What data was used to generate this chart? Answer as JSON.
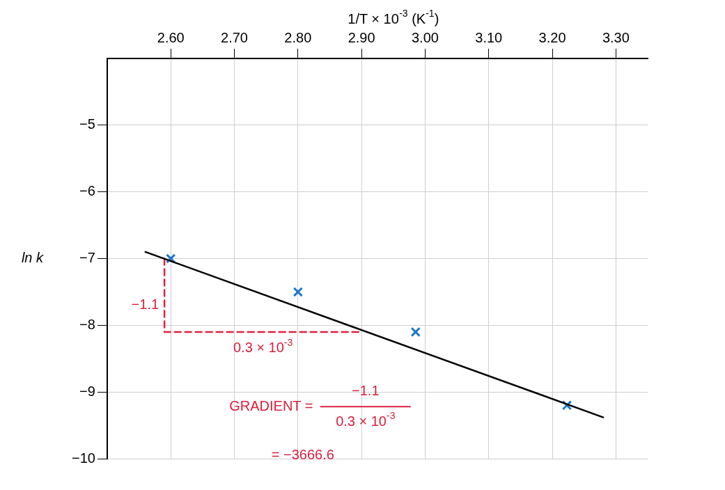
{
  "chart_data": {
    "type": "scatter",
    "xlabel": "1/T × 10$^{-3}$ (K$^{-1}$)",
    "ylabel": "ln k",
    "xlim": [
      2.5,
      3.35
    ],
    "ylim": [
      -10,
      -4
    ],
    "xticks": [
      {
        "value": 2.6,
        "label": "2.60"
      },
      {
        "value": 2.7,
        "label": "2.70"
      },
      {
        "value": 2.8,
        "label": "2.80"
      },
      {
        "value": 2.9,
        "label": "2.90"
      },
      {
        "value": 3.0,
        "label": "3.00"
      },
      {
        "value": 3.1,
        "label": "3.10"
      },
      {
        "value": 3.2,
        "label": "3.20"
      },
      {
        "value": 3.3,
        "label": "3.30"
      }
    ],
    "yticks": [
      {
        "value": -5,
        "label": "−5"
      },
      {
        "value": -6,
        "label": "−6"
      },
      {
        "value": -7,
        "label": "−7"
      },
      {
        "value": -8,
        "label": "−8"
      },
      {
        "value": -9,
        "label": "−9"
      },
      {
        "value": -10,
        "label": "−10"
      }
    ],
    "grid": true,
    "legend": false,
    "series": [
      {
        "type": "line",
        "color": "#000000",
        "x": [
          2.56,
          3.28
        ],
        "values": [
          -6.9,
          -9.38
        ],
        "marker": "none",
        "line_style": "solid"
      },
      {
        "type": "line",
        "color": "#e0203f",
        "x": [
          2.59,
          2.59,
          2.9
        ],
        "values": [
          -7.0,
          -8.1,
          -8.1
        ],
        "marker": "none",
        "line_style": "dashed"
      },
      {
        "type": "scatter",
        "color": "#1b78c8",
        "x": [
          2.6,
          2.8,
          2.985,
          3.223
        ],
        "values": [
          -7.0,
          -7.5,
          -8.1,
          -9.2
        ],
        "marker": "cross"
      }
    ],
    "annotations": [
      {
        "text": "−1.1",
        "x": 2.59,
        "y": -7.7
      },
      {
        "text": "0.3 × 10$^{-3}$",
        "x": 2.745,
        "y": -8.1
      },
      "GRADIENT =",
      "−1.1",
      "0.3 × 10$^{-3}$",
      "= −3666.6"
    ]
  }
}
